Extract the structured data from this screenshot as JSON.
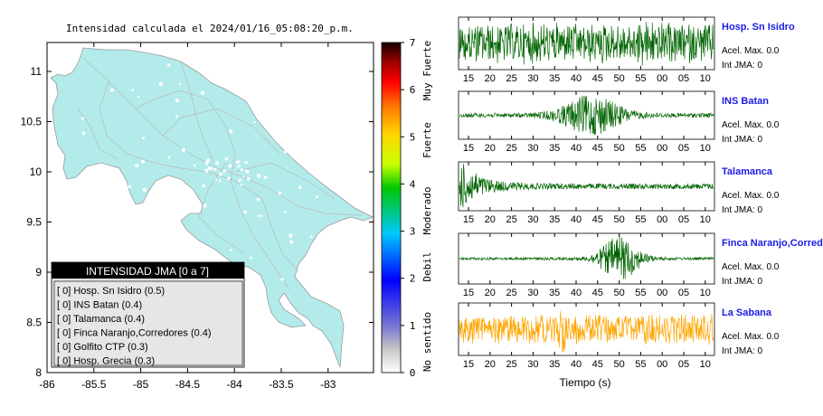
{
  "map": {
    "title": "Intensidad calculada el 2024/01/16_05:08:20_p.m.",
    "x_ticks": [
      "-86",
      "-85.5",
      "-85",
      "-84.5",
      "-84",
      "-83.5",
      "-83"
    ],
    "y_ticks": [
      "11",
      "10.5",
      "10",
      "9.5",
      "9",
      "8.5",
      "8"
    ],
    "land_color": "#b3ebeb",
    "legend": {
      "title": "INTENSIDAD JMA [0 a 7]",
      "entries": [
        "[ 0]  Hosp. Sn Isidro (0.5)",
        "[ 0]  INS Batan (0.4)",
        "[ 0]  Talamanca (0.4)",
        "[ 0]  Finca Naranjo,Corredores (0.4)",
        "[ 0]  Golfito CTP (0.3)",
        "[ 0]  Hosp. Grecia (0.3)"
      ]
    }
  },
  "colorbar": {
    "ticks": [
      "7",
      "6",
      "5",
      "4",
      "3",
      "2",
      "1",
      "0"
    ],
    "labels": [
      "Muy Fuerte",
      "Fuerte",
      "Moderado",
      "Debil",
      "No sentido"
    ]
  },
  "traces": [
    {
      "station": "Hosp. Sn Isidro",
      "accel": "Acel. Max. 0.0",
      "jma": "Int JMA: 0",
      "color": "#006400"
    },
    {
      "station": "INS Batan",
      "accel": "Acel. Max. 0.0",
      "jma": "Int JMA: 0",
      "color": "#006400"
    },
    {
      "station": "Talamanca",
      "accel": "Acel. Max. 0.0",
      "jma": "Int JMA: 0",
      "color": "#006400"
    },
    {
      "station": "Finca Naranjo,Corredores",
      "accel": "Acel. Max. 0.0",
      "jma": "Int JMA: 0",
      "color": "#006400"
    },
    {
      "station": "La Sabana",
      "accel": "Acel. Max. 0.0",
      "jma": "Int JMA: 0",
      "color": "#ffa500"
    }
  ],
  "time_ticks": [
    "15",
    "20",
    "25",
    "30",
    "35",
    "40",
    "45",
    "50",
    "55",
    "00",
    "05",
    "10"
  ],
  "xlabel": "Tiempo (s)",
  "chart_data": {
    "type": "line",
    "xlabel": "Tiempo (s)",
    "x_ticks": [
      "15",
      "20",
      "25",
      "30",
      "35",
      "40",
      "45",
      "50",
      "55",
      "00",
      "05",
      "10"
    ],
    "series": [
      {
        "name": "Hosp. Sn Isidro",
        "acel_max": 0.0,
        "int_jma": 0
      },
      {
        "name": "INS Batan",
        "acel_max": 0.0,
        "int_jma": 0
      },
      {
        "name": "Talamanca",
        "acel_max": 0.0,
        "int_jma": 0
      },
      {
        "name": "Finca Naranjo,Corredores",
        "acel_max": 0.0,
        "int_jma": 0
      },
      {
        "name": "La Sabana",
        "acel_max": 0.0,
        "int_jma": 0
      }
    ]
  }
}
